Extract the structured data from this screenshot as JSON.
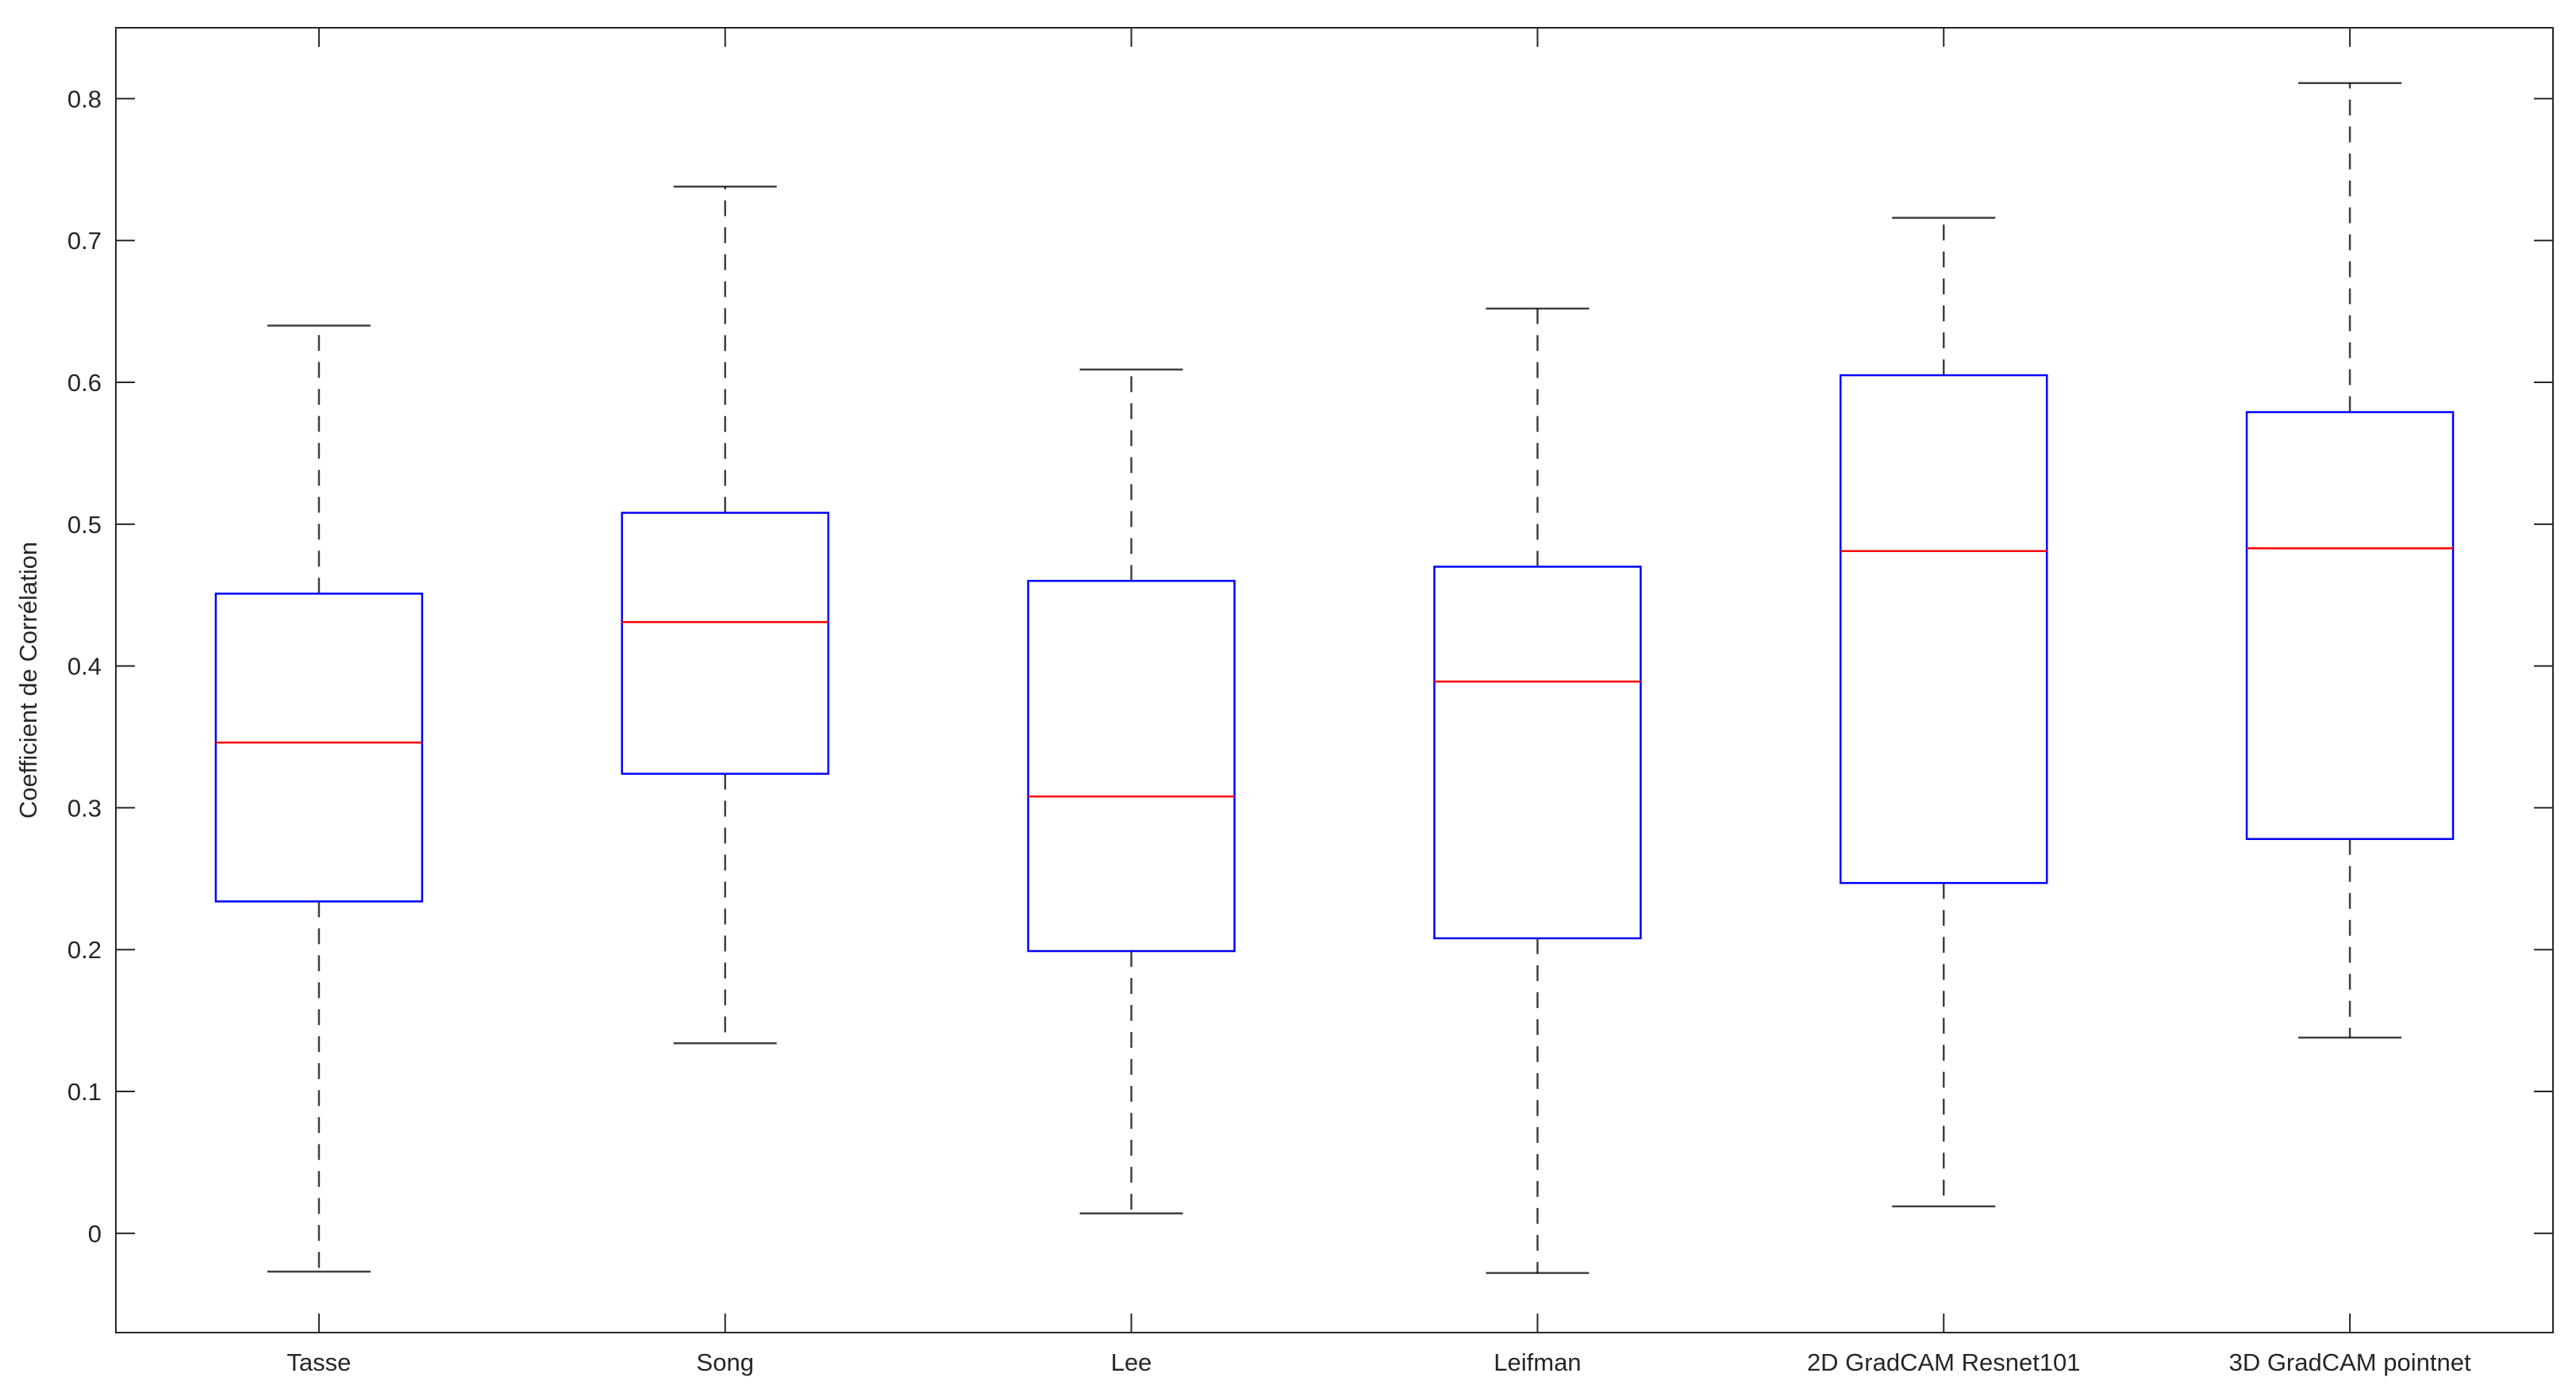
{
  "chart_data": {
    "type": "boxplot",
    "title": "",
    "xlabel": "",
    "ylabel": "Coefficient de Corrélation",
    "ylim": [
      -0.07,
      0.85
    ],
    "yticks": [
      0,
      0.1,
      0.2,
      0.3,
      0.4,
      0.5,
      0.6,
      0.7,
      0.8
    ],
    "ytick_labels": [
      "0",
      "0.1",
      "0.2",
      "0.3",
      "0.4",
      "0.5",
      "0.6",
      "0.7",
      "0.8"
    ],
    "grid": false,
    "categories": [
      "Tasse",
      "Song",
      "Lee",
      "Leifman",
      "2D GradCAM Resnet101",
      "3D GradCAM pointnet"
    ],
    "boxes": [
      {
        "whisker_low": -0.027,
        "q1": 0.234,
        "median": 0.346,
        "q3": 0.451,
        "whisker_high": 0.64
      },
      {
        "whisker_low": 0.134,
        "q1": 0.324,
        "median": 0.431,
        "q3": 0.508,
        "whisker_high": 0.738
      },
      {
        "whisker_low": 0.014,
        "q1": 0.199,
        "median": 0.308,
        "q3": 0.46,
        "whisker_high": 0.609
      },
      {
        "whisker_low": -0.028,
        "q1": 0.208,
        "median": 0.389,
        "q3": 0.47,
        "whisker_high": 0.652
      },
      {
        "whisker_low": 0.019,
        "q1": 0.247,
        "median": 0.481,
        "q3": 0.605,
        "whisker_high": 0.716
      },
      {
        "whisker_low": 0.138,
        "q1": 0.278,
        "median": 0.483,
        "q3": 0.579,
        "whisker_high": 0.811
      }
    ],
    "colors": {
      "box": "#0000ff",
      "median": "#ff0000",
      "whisker": "#000000",
      "axes": "#262626"
    }
  }
}
